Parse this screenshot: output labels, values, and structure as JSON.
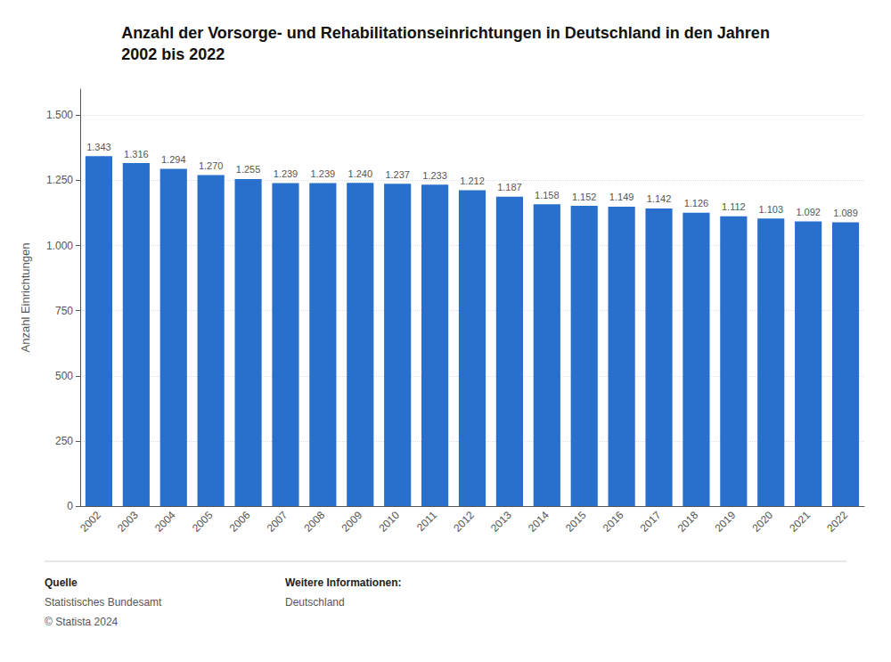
{
  "chart_data": {
    "type": "bar",
    "title": "Anzahl der Vorsorge- und Rehabilitationseinrichtungen in Deutschland in den Jahren\n2002 bis 2022",
    "ylabel": "Anzahl Einrichtungen",
    "categories": [
      "2002",
      "2003",
      "2004",
      "2005",
      "2006",
      "2007",
      "2008",
      "2009",
      "2010",
      "2011",
      "2012",
      "2013",
      "2014",
      "2015",
      "2016",
      "2017",
      "2018",
      "2019",
      "2020",
      "2021",
      "2022"
    ],
    "values": [
      1343,
      1316,
      1294,
      1270,
      1255,
      1239,
      1239,
      1240,
      1237,
      1233,
      1212,
      1187,
      1158,
      1152,
      1149,
      1142,
      1126,
      1112,
      1103,
      1092,
      1089
    ],
    "value_labels": [
      "1.343",
      "1.316",
      "1.294",
      "1.270",
      "1.255",
      "1.239",
      "1.239",
      "1.240",
      "1.237",
      "1.233",
      "1.212",
      "1.187",
      "1.158",
      "1.152",
      "1.149",
      "1.142",
      "1.126",
      "1.112",
      "1.103",
      "1.092",
      "1.089"
    ],
    "data_labels": true,
    "color": "#2970cc",
    "ylim": [
      0,
      1600
    ],
    "yticks": [
      0,
      250,
      500,
      750,
      {
        "value": 1000,
        "label": "1.000"
      },
      {
        "value": 1250,
        "label": "1.250"
      },
      {
        "value": 1500,
        "label": "1.500"
      }
    ],
    "grid": true,
    "annotations": [
      [
        "Quelle",
        "Statistisches Bundesamt",
        "© Statista 2024"
      ],
      [
        "Weitere Informationen:",
        "Deutschland"
      ]
    ]
  }
}
